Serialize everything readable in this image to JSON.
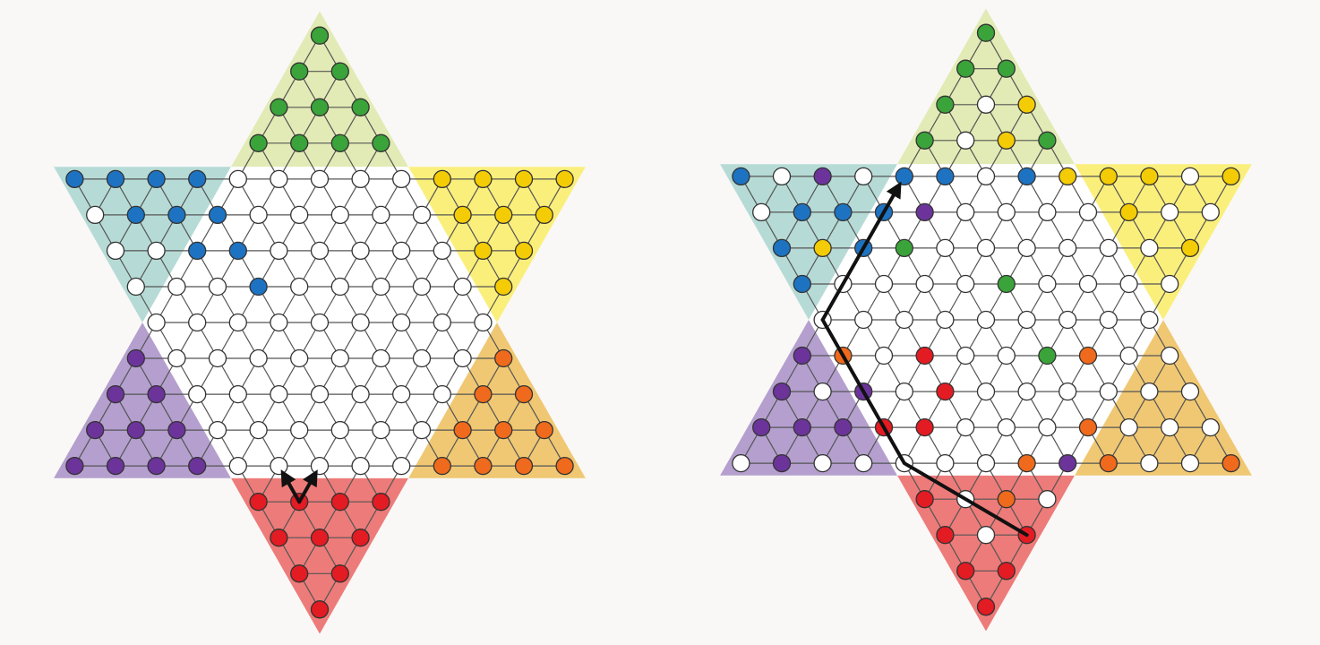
{
  "colors": {
    "background": "#f9f8f6",
    "board_fill": "#ffffff",
    "grid_line": "#555555",
    "hole_stroke": "#333333",
    "arrow": "#111111",
    "corners": {
      "top": {
        "fill": "#e2ebb5",
        "peg": "#3aa33a"
      },
      "upper_right": {
        "fill": "#fbef7c",
        "peg": "#f4cc05"
      },
      "lower_right": {
        "fill": "#f0c873",
        "peg": "#ef6a1c"
      },
      "bottom": {
        "fill": "#ed7b79",
        "peg": "#e31b23"
      },
      "lower_left": {
        "fill": "#b49fce",
        "peg": "#6c349b"
      },
      "upper_left": {
        "fill": "#b6dbd6",
        "peg": "#1d73c2"
      }
    }
  },
  "boards": [
    {
      "name": "board-single-steps",
      "pegs": [
        [
          -8,
          4,
          "top"
        ],
        [
          -7,
          3,
          "top"
        ],
        [
          -7,
          4,
          "top"
        ],
        [
          -6,
          2,
          "top"
        ],
        [
          -6,
          3,
          "top"
        ],
        [
          -6,
          4,
          "top"
        ],
        [
          -5,
          1,
          "top"
        ],
        [
          -5,
          2,
          "top"
        ],
        [
          -5,
          3,
          "top"
        ],
        [
          -5,
          4,
          "top"
        ],
        [
          -4,
          5,
          "upper_right"
        ],
        [
          -4,
          6,
          "upper_right"
        ],
        [
          -4,
          7,
          "upper_right"
        ],
        [
          -4,
          8,
          "upper_right"
        ],
        [
          -3,
          5,
          "upper_right"
        ],
        [
          -3,
          6,
          "upper_right"
        ],
        [
          -3,
          7,
          "upper_right"
        ],
        [
          -2,
          5,
          "upper_right"
        ],
        [
          -2,
          6,
          "upper_right"
        ],
        [
          -1,
          5,
          "upper_right"
        ],
        [
          1,
          4,
          "lower_right"
        ],
        [
          2,
          3,
          "lower_right"
        ],
        [
          2,
          4,
          "lower_right"
        ],
        [
          3,
          2,
          "lower_right"
        ],
        [
          3,
          3,
          "lower_right"
        ],
        [
          3,
          4,
          "lower_right"
        ],
        [
          4,
          1,
          "lower_right"
        ],
        [
          4,
          2,
          "lower_right"
        ],
        [
          4,
          3,
          "lower_right"
        ],
        [
          4,
          4,
          "lower_right"
        ],
        [
          5,
          -3,
          "bottom"
        ],
        [
          5,
          -2,
          "bottom"
        ],
        [
          5,
          -1,
          "bottom"
        ],
        [
          6,
          -4,
          "bottom"
        ],
        [
          6,
          -3,
          "bottom"
        ],
        [
          6,
          -2,
          "bottom"
        ],
        [
          7,
          -4,
          "bottom"
        ],
        [
          7,
          -3,
          "bottom"
        ],
        [
          8,
          -4,
          "bottom"
        ],
        [
          5,
          -4,
          "bottom"
        ],
        [
          1,
          -5,
          "lower_left"
        ],
        [
          2,
          -6,
          "lower_left"
        ],
        [
          2,
          -5,
          "lower_left"
        ],
        [
          3,
          -7,
          "lower_left"
        ],
        [
          3,
          -6,
          "lower_left"
        ],
        [
          3,
          -5,
          "lower_left"
        ],
        [
          4,
          -8,
          "lower_left"
        ],
        [
          4,
          -7,
          "lower_left"
        ],
        [
          4,
          -6,
          "lower_left"
        ],
        [
          4,
          -5,
          "lower_left"
        ],
        [
          -4,
          -4,
          "upper_left"
        ],
        [
          -4,
          -3,
          "upper_left"
        ],
        [
          -4,
          -2,
          "upper_left"
        ],
        [
          -4,
          -1,
          "upper_left"
        ],
        [
          -3,
          -3,
          "upper_left"
        ],
        [
          -3,
          -2,
          "upper_left"
        ],
        [
          -3,
          -1,
          "upper_left"
        ],
        [
          -2,
          -2,
          "upper_left"
        ],
        [
          -2,
          -1,
          "upper_left"
        ],
        [
          -1,
          -1,
          "upper_left"
        ]
      ],
      "moves": [
        {
          "name": "step-move-left",
          "path": [
            [
              5,
              -3
            ],
            [
              4,
              -3
            ]
          ]
        },
        {
          "name": "step-move-right",
          "path": [
            [
              5,
              -3
            ],
            [
              4,
              -2
            ]
          ]
        }
      ]
    },
    {
      "name": "board-jump-chain",
      "pegs": [
        [
          -8,
          4,
          "top"
        ],
        [
          -7,
          3,
          "top"
        ],
        [
          -7,
          4,
          "top"
        ],
        [
          -6,
          2,
          "top"
        ],
        [
          -5,
          1,
          "top"
        ],
        [
          -5,
          4,
          "top"
        ],
        [
          -3,
          0,
          "top"
        ],
        [
          -2,
          -1,
          "top"
        ],
        [
          -1,
          1,
          "top"
        ],
        [
          1,
          1,
          "top"
        ],
        [
          -6,
          4,
          "upper_right"
        ],
        [
          -5,
          3,
          "upper_right"
        ],
        [
          -4,
          5,
          "upper_right"
        ],
        [
          -4,
          6,
          "upper_right"
        ],
        [
          -4,
          8,
          "upper_right"
        ],
        [
          -3,
          5,
          "upper_right"
        ],
        [
          -3,
          8,
          "upper_right"
        ],
        [
          -2,
          6,
          "upper_right"
        ],
        [
          -2,
          -3,
          "upper_right"
        ],
        [
          -4,
          4,
          "upper_right"
        ],
        [
          1,
          -4,
          "lower_right"
        ],
        [
          3,
          1,
          "lower_right"
        ],
        [
          4,
          -1,
          "lower_right"
        ],
        [
          4,
          4,
          "lower_right"
        ],
        [
          4,
          7,
          "lower_right"
        ],
        [
          1,
          2,
          "lower_right"
        ],
        [
          3,
          6,
          "lower_right"
        ],
        [
          5,
          -2,
          "lower_right"
        ],
        [
          4,
          1,
          "lower_right"
        ],
        [
          2,
          5,
          "lower_right"
        ],
        [
          1,
          -2,
          "bottom"
        ],
        [
          2,
          -2,
          "bottom"
        ],
        [
          3,
          -4,
          "bottom"
        ],
        [
          3,
          -3,
          "bottom"
        ],
        [
          5,
          -4,
          "bottom"
        ],
        [
          6,
          -4,
          "bottom"
        ],
        [
          7,
          -4,
          "bottom"
        ],
        [
          7,
          -3,
          "bottom"
        ],
        [
          8,
          -4,
          "bottom"
        ],
        [
          6,
          -2,
          "bottom"
        ],
        [
          -4,
          -2,
          "lower_left"
        ],
        [
          -3,
          0,
          "lower_left"
        ],
        [
          1,
          -5,
          "lower_left"
        ],
        [
          2,
          -6,
          "lower_left"
        ],
        [
          2,
          -4,
          "lower_left"
        ],
        [
          3,
          -7,
          "lower_left"
        ],
        [
          3,
          -6,
          "lower_left"
        ],
        [
          3,
          -5,
          "lower_left"
        ],
        [
          4,
          -7,
          "lower_left"
        ],
        [
          4,
          0,
          "lower_left"
        ],
        [
          -4,
          -4,
          "upper_left"
        ],
        [
          -4,
          0,
          "upper_left"
        ],
        [
          -4,
          1,
          "upper_left"
        ],
        [
          -3,
          -3,
          "upper_left"
        ],
        [
          -3,
          -2,
          "upper_left"
        ],
        [
          -3,
          -1,
          "upper_left"
        ],
        [
          -2,
          -2,
          "upper_left"
        ],
        [
          -1,
          -4,
          "upper_left"
        ],
        [
          -4,
          3,
          "upper_left"
        ],
        [
          -2,
          -4,
          "upper_left"
        ]
      ],
      "moves": [
        {
          "name": "jump-chain-move",
          "path": [
            [
              6,
              -2
            ],
            [
              4,
              -4
            ],
            [
              2,
              -4
            ],
            [
              0,
              -4
            ],
            [
              -2,
              -2
            ],
            [
              -4,
              0
            ]
          ]
        }
      ]
    }
  ]
}
